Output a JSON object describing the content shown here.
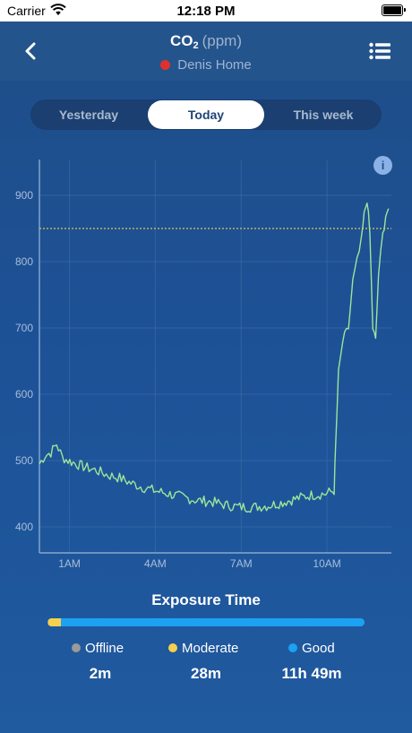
{
  "status": {
    "carrier": "Carrier",
    "time": "12:18 PM"
  },
  "header": {
    "title_gas": "CO",
    "title_sub": "2",
    "title_unit": "(ppm)",
    "location": "Denis Home",
    "location_dot_color": "#e0312f"
  },
  "tabs": [
    {
      "label": "Yesterday",
      "active": false
    },
    {
      "label": "Today",
      "active": true
    },
    {
      "label": "This week",
      "active": false
    }
  ],
  "chart_data": {
    "type": "line",
    "y_ticks": [
      "900",
      "800",
      "700",
      "600",
      "500",
      "400"
    ],
    "x_ticks": [
      "1AM",
      "4AM",
      "7AM",
      "10AM"
    ],
    "threshold": 850,
    "threshold_color": "#d8c85a",
    "line_color": "#9ce59a",
    "grid": true,
    "series": [
      {
        "values": [
          [
            0.0,
            495
          ],
          [
            0.2,
            508
          ],
          [
            0.4,
            512
          ],
          [
            0.6,
            525
          ],
          [
            0.8,
            505
          ],
          [
            1.0,
            500
          ],
          [
            1.3,
            495
          ],
          [
            1.6,
            490
          ],
          [
            2.0,
            485
          ],
          [
            2.4,
            478
          ],
          [
            2.8,
            474
          ],
          [
            3.2,
            466
          ],
          [
            3.6,
            460
          ],
          [
            4.0,
            455
          ],
          [
            4.5,
            450
          ],
          [
            5.0,
            445
          ],
          [
            5.5,
            440
          ],
          [
            6.0,
            438
          ],
          [
            6.5,
            433
          ],
          [
            7.0,
            430
          ],
          [
            7.5,
            430
          ],
          [
            8.0,
            432
          ],
          [
            8.5,
            437
          ],
          [
            9.0,
            443
          ],
          [
            9.5,
            448
          ],
          [
            10.0,
            450
          ],
          [
            10.3,
            455
          ],
          [
            10.35,
            520
          ],
          [
            10.45,
            630
          ],
          [
            10.6,
            680
          ],
          [
            10.8,
            700
          ],
          [
            10.95,
            770
          ],
          [
            11.1,
            800
          ],
          [
            11.25,
            830
          ],
          [
            11.35,
            870
          ],
          [
            11.45,
            895
          ],
          [
            11.55,
            840
          ],
          [
            11.65,
            700
          ],
          [
            11.75,
            680
          ],
          [
            11.85,
            780
          ],
          [
            12.0,
            840
          ],
          [
            12.1,
            870
          ],
          [
            12.2,
            880
          ]
        ]
      }
    ]
  },
  "exposure": {
    "title": "Exposure Time",
    "fractions": {
      "offline": 0.003,
      "moderate": 0.04,
      "good": 0.957
    },
    "items": [
      {
        "label": "Offline",
        "value": "2m",
        "color": "#9a9a9a"
      },
      {
        "label": "Moderate",
        "value": "28m",
        "color": "#f5d04d"
      },
      {
        "label": "Good",
        "value": "11h 49m",
        "color": "#1da1f2"
      }
    ]
  }
}
